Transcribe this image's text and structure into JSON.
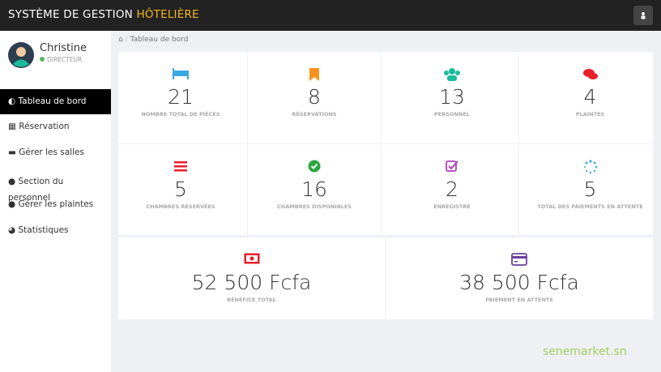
{
  "header": {
    "title": "SYSTÈME DE GESTION",
    "title_highlight": "HÔTELIÈRE"
  },
  "user": {
    "name": "Christine",
    "role": "DIRECTEUR"
  },
  "menu": [
    "Tableau de bord",
    "Réservation",
    "Gérer les salles",
    "Section du personnel",
    "Gérer les plaintes",
    "Statistiques"
  ],
  "breadcrumb": "Tableau de bord",
  "stats": [
    {
      "value": 21,
      "label": "NOMBRE TOTAL DE PIÈCES"
    },
    {
      "value": 8,
      "label": "RÉSERVATIONS"
    },
    {
      "value": 13,
      "label": "PERSONNEL"
    },
    {
      "value": 4,
      "label": "PLAINTES"
    },
    {
      "value": 5,
      "label": "CHAMBRES RÉSERVÉES"
    },
    {
      "value": 16,
      "label": "CHAMBRES DISPONIBLES"
    },
    {
      "value": 2,
      "label": "ENREGISTRÉ"
    },
    {
      "value": 5,
      "label": "TOTAL DES PAIEMENTS EN ATTENTE"
    }
  ],
  "totals": [
    {
      "value": "52 500 Fcfa",
      "label": "BÉNÉFICE TOTAL"
    },
    {
      "value": "38 500 Fcfa",
      "label": "PAIEMENT EN ATTENTE"
    }
  ],
  "watermark": "senemarket.sn"
}
